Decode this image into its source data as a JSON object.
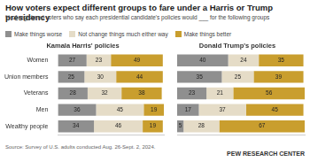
{
  "title": "How voters expect different groups to fare under a Harris or Trump presidency",
  "subtitle": "% of registered voters who say each presidential candidate's policies would ___ for the following groups",
  "source": "Source: Survey of U.S. adults conducted Aug. 26-Sept. 2, 2024.",
  "credit": "PEW RESEARCH CENTER",
  "chart_data": [
    {
      "type": "bar",
      "title": "Kamala Harris' policies",
      "orientation": "horizontal",
      "stacked": true,
      "data_labels": true,
      "tick_labels": "y",
      "grid": false,
      "categories": [
        "Women",
        "Union members",
        "Veterans",
        "Men",
        "Wealthy people"
      ],
      "xlim": [
        0,
        100
      ],
      "series": [
        {
          "name": "Make things worse",
          "color": "#8f8f8f",
          "values": [
            27,
            25,
            28,
            36,
            34
          ]
        },
        {
          "name": "Not change things much either way",
          "color": "#e5dcc7",
          "values": [
            23,
            30,
            32,
            45,
            46
          ]
        },
        {
          "name": "Make things better",
          "color": "#c99e2e",
          "values": [
            49,
            44,
            38,
            19,
            19
          ]
        }
      ]
    },
    {
      "type": "bar",
      "title": "Donald Trump's policies",
      "orientation": "horizontal",
      "stacked": true,
      "data_labels": true,
      "tick_labels": false,
      "grid": false,
      "categories": [
        "Women",
        "Union members",
        "Veterans",
        "Men",
        "Wealthy people"
      ],
      "xlim": [
        0,
        100
      ],
      "series": [
        {
          "name": "Make things worse",
          "color": "#8f8f8f",
          "values": [
            40,
            35,
            23,
            17,
            5
          ]
        },
        {
          "name": "Not change things much either way",
          "color": "#e5dcc7",
          "values": [
            24,
            25,
            21,
            37,
            28
          ]
        },
        {
          "name": "Make things better",
          "color": "#c99e2e",
          "values": [
            35,
            39,
            56,
            45,
            67
          ]
        }
      ]
    }
  ]
}
